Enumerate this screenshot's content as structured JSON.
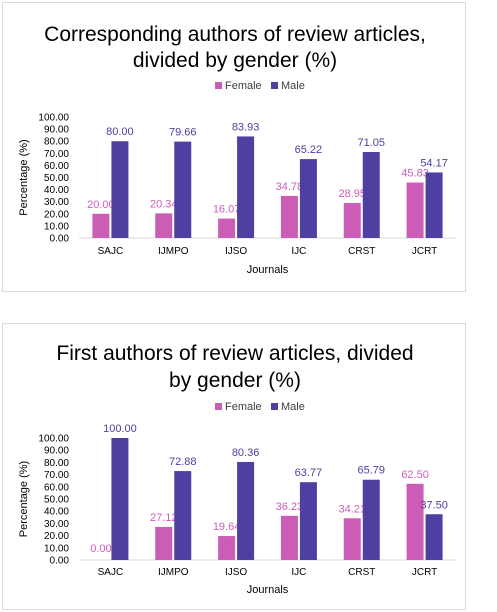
{
  "colors": {
    "female": "#cc5db6",
    "male": "#4f3fa0",
    "axis": "#d9d9d9"
  },
  "chart_data": [
    {
      "type": "bar",
      "title_lines": [
        "Corresponding authors of review articles,",
        "divided by gender (%)"
      ],
      "xlabel": "Journals",
      "ylabel": "Percentage (%)",
      "ylim": [
        0,
        100
      ],
      "yticks": [
        "0.00",
        "10.00",
        "20.00",
        "30.00",
        "40.00",
        "50.00",
        "60.00",
        "70.00",
        "80.00",
        "90.00",
        "100.00"
      ],
      "legend_position": "top-center",
      "categories": [
        "SAJC",
        "IJMPO",
        "IJSO",
        "IJC",
        "CRST",
        "JCRT"
      ],
      "series": [
        {
          "name": "Female",
          "values": [
            20.0,
            20.34,
            16.07,
            34.78,
            28.95,
            45.83
          ],
          "labels": [
            "20.00",
            "20.34",
            "16.07",
            "34.78",
            "28.95",
            "45.83"
          ]
        },
        {
          "name": "Male",
          "values": [
            80.0,
            79.66,
            83.93,
            65.22,
            71.05,
            54.17
          ],
          "labels": [
            "80.00",
            "79.66",
            "83.93",
            "65.22",
            "71.05",
            "54.17"
          ]
        }
      ]
    },
    {
      "type": "bar",
      "title_lines": [
        "First authors of review articles, divided",
        "by gender (%)"
      ],
      "xlabel": "Journals",
      "ylabel": "Percentage (%)",
      "ylim": [
        0,
        100
      ],
      "yticks": [
        "0.00",
        "10.00",
        "20.00",
        "30.00",
        "40.00",
        "50.00",
        "60.00",
        "70.00",
        "80.00",
        "90.00",
        "100.00"
      ],
      "legend_position": "top-center",
      "categories": [
        "SAJC",
        "IJMPO",
        "IJSO",
        "IJC",
        "CRST",
        "JCRT"
      ],
      "series": [
        {
          "name": "Female",
          "values": [
            0.0,
            27.12,
            19.64,
            36.23,
            34.21,
            62.5
          ],
          "labels": [
            "0.00",
            "27.12",
            "19.64",
            "36.23",
            "34.21",
            "62.50"
          ]
        },
        {
          "name": "Male",
          "values": [
            100.0,
            72.88,
            80.36,
            63.77,
            65.79,
            37.5
          ],
          "labels": [
            "100.00",
            "72.88",
            "80.36",
            "63.77",
            "65.79",
            "37.50"
          ]
        }
      ]
    }
  ]
}
